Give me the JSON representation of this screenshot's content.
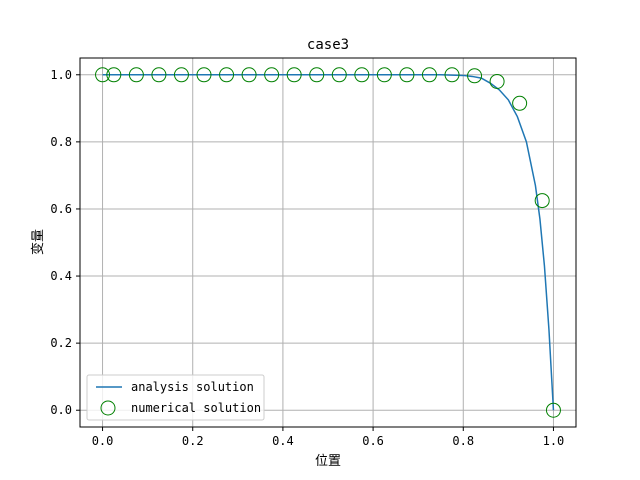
{
  "chart_data": {
    "type": "line",
    "title": "case3",
    "xlabel": "位置",
    "ylabel": "变量",
    "xlim": [
      -0.05,
      1.05
    ],
    "ylim": [
      -0.05,
      1.05
    ],
    "xticks": [
      0.0,
      0.2,
      0.4,
      0.6,
      0.8,
      1.0
    ],
    "xtick_labels": [
      "0.0",
      "0.2",
      "0.4",
      "0.6",
      "0.8",
      "1.0"
    ],
    "yticks": [
      0.0,
      0.2,
      0.4,
      0.6,
      0.8,
      1.0
    ],
    "ytick_labels": [
      "0.0",
      "0.2",
      "0.4",
      "0.6",
      "0.8",
      "1.0"
    ],
    "grid": true,
    "legend_position": "lower-left",
    "series": [
      {
        "name": "analysis solution",
        "kind": "line",
        "color": "#1f77b4",
        "x": [
          0.0,
          0.1,
          0.2,
          0.3,
          0.4,
          0.5,
          0.6,
          0.7,
          0.75,
          0.8,
          0.82,
          0.84,
          0.86,
          0.88,
          0.9,
          0.92,
          0.94,
          0.96,
          0.97,
          0.98,
          0.99,
          1.0
        ],
        "y": [
          1.0,
          1.0,
          1.0,
          1.0,
          1.0,
          1.0,
          1.0,
          1.0,
          1.0,
          0.998,
          0.995,
          0.99,
          0.975,
          0.955,
          0.925,
          0.875,
          0.8,
          0.67,
          0.57,
          0.43,
          0.24,
          0.0
        ]
      },
      {
        "name": "numerical solution",
        "kind": "scatter",
        "marker": "open-circle",
        "color": "#008000",
        "x": [
          0.0,
          0.025,
          0.075,
          0.125,
          0.175,
          0.225,
          0.275,
          0.325,
          0.375,
          0.425,
          0.475,
          0.525,
          0.575,
          0.625,
          0.675,
          0.725,
          0.775,
          0.825,
          0.875,
          0.925,
          0.975,
          1.0
        ],
        "y": [
          1.0,
          1.0,
          1.0,
          1.0,
          1.0,
          1.0,
          1.0,
          1.0,
          1.0,
          1.0,
          1.0,
          1.0,
          1.0,
          1.0,
          1.0,
          1.0,
          1.0,
          0.997,
          0.98,
          0.915,
          0.625,
          0.0
        ]
      }
    ]
  }
}
